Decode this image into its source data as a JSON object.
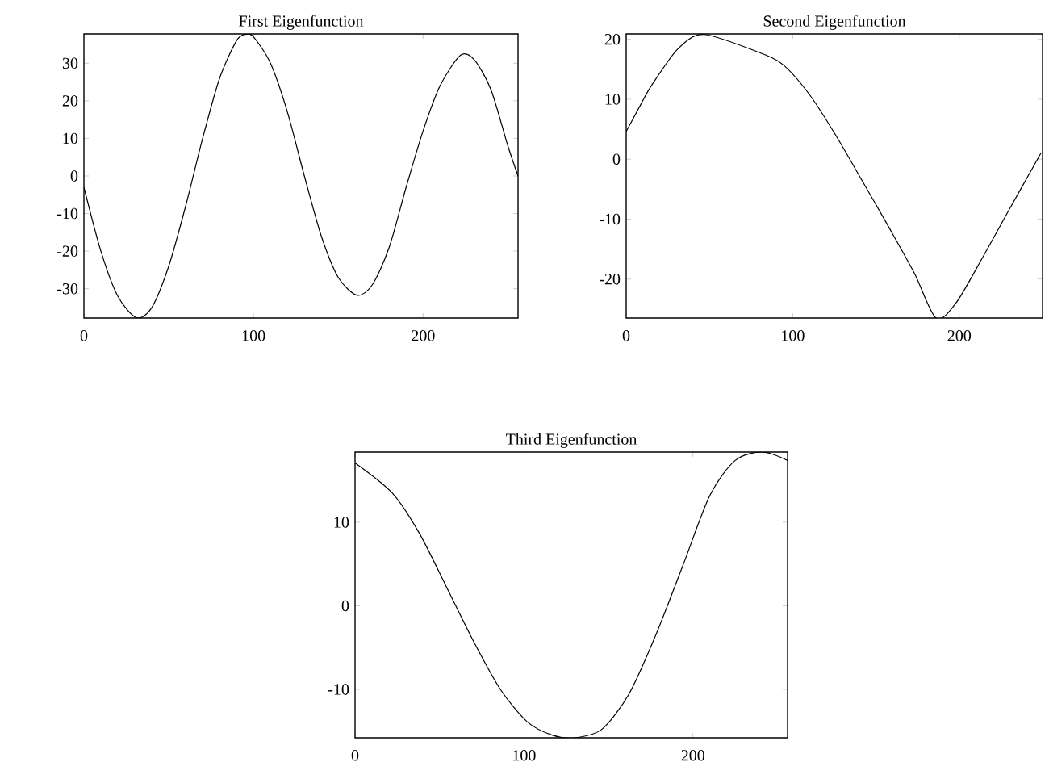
{
  "chart_data": [
    {
      "type": "line",
      "title": "First Eigenfunction",
      "x": [
        0,
        10,
        20,
        31,
        40,
        50,
        60,
        70,
        80,
        90,
        95.5,
        100,
        110,
        120,
        130,
        140,
        150,
        161,
        170,
        180,
        190,
        200,
        210,
        222,
        230,
        240,
        250,
        256
      ],
      "series": [
        {
          "color": "#000000",
          "values": [
            -3,
            -20,
            -32,
            -37.7,
            -35,
            -24,
            -8,
            10,
            26,
            36,
            37.7,
            37,
            30,
            17,
            0,
            -16,
            -27,
            -31.7,
            -29,
            -19,
            -3,
            12,
            24,
            32.1,
            31,
            23,
            8,
            0
          ]
        }
      ],
      "xlim": [
        0,
        256
      ],
      "ylim": [
        -37.8,
        37.8
      ],
      "xticks": [
        0,
        100,
        200
      ],
      "yticks": [
        -30,
        -20,
        -10,
        0,
        10,
        20,
        30
      ]
    },
    {
      "type": "line",
      "title": "Second Eigenfunction",
      "x": [
        0,
        8.5,
        15,
        31,
        46.5,
        78,
        94,
        110,
        125.6,
        141.5,
        157,
        173,
        186,
        198,
        214,
        230,
        249
      ],
      "series": [
        {
          "color": "#000000",
          "values": [
            4.6,
            9,
            12.2,
            18.4,
            20.8,
            18,
            15.8,
            10.8,
            4.1,
            -3.5,
            -11,
            -19,
            -26.5,
            -24,
            -16.4,
            -8.4,
            1
          ]
        }
      ],
      "xlim": [
        0,
        250
      ],
      "ylim": [
        -26.5,
        20.9
      ],
      "xticks": [
        0,
        100,
        200
      ],
      "yticks": [
        -20,
        -10,
        0,
        10,
        20
      ]
    },
    {
      "type": "line",
      "title": "Third Eigenfunction",
      "x": [
        0,
        22,
        38,
        54,
        70,
        86,
        102,
        117,
        130,
        146,
        162,
        178,
        194,
        210,
        225,
        241,
        256
      ],
      "series": [
        {
          "color": "#000000",
          "values": [
            17.1,
            13.5,
            8.7,
            2.3,
            -4.2,
            -10,
            -13.9,
            -15.5,
            -15.8,
            -14.8,
            -10.6,
            -3.5,
            4.8,
            13.2,
            17.4,
            18.4,
            17.4
          ]
        }
      ],
      "xlim": [
        0,
        256
      ],
      "ylim": [
        -15.8,
        18.4
      ],
      "xticks": [
        0,
        100,
        200
      ],
      "yticks": [
        -10,
        0,
        10
      ]
    }
  ]
}
